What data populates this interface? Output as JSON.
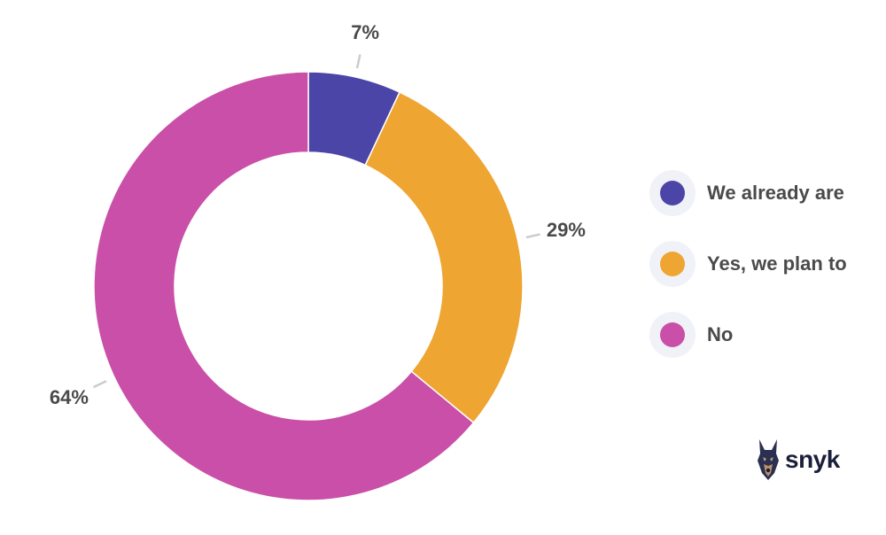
{
  "chart_data": {
    "type": "pie",
    "variant": "donut",
    "categories": [
      "We already are",
      "Yes, we plan to",
      "No"
    ],
    "values": [
      7,
      29,
      64
    ],
    "value_labels": [
      "7%",
      "29%",
      "64%"
    ],
    "colors": [
      "#4c45a8",
      "#eea532",
      "#c94fa8"
    ],
    "title": "",
    "legend_position": "right"
  },
  "legend": {
    "items": [
      {
        "label": "We already are",
        "color": "#4c45a8"
      },
      {
        "label": "Yes, we plan to",
        "color": "#eea532"
      },
      {
        "label": "No",
        "color": "#c94fa8"
      }
    ]
  },
  "logo": {
    "text": "snyk",
    "icon": "doberman-dog-icon"
  }
}
